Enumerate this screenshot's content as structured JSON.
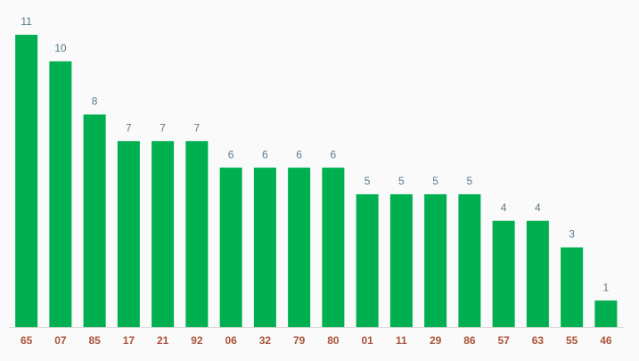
{
  "chart_data": {
    "type": "bar",
    "categories": [
      "65",
      "07",
      "85",
      "17",
      "21",
      "92",
      "06",
      "32",
      "79",
      "80",
      "01",
      "11",
      "29",
      "86",
      "57",
      "63",
      "55",
      "46"
    ],
    "values": [
      11,
      10,
      8,
      7,
      7,
      7,
      6,
      6,
      6,
      6,
      5,
      5,
      5,
      5,
      4,
      4,
      3,
      1
    ],
    "color": "#00b050"
  }
}
